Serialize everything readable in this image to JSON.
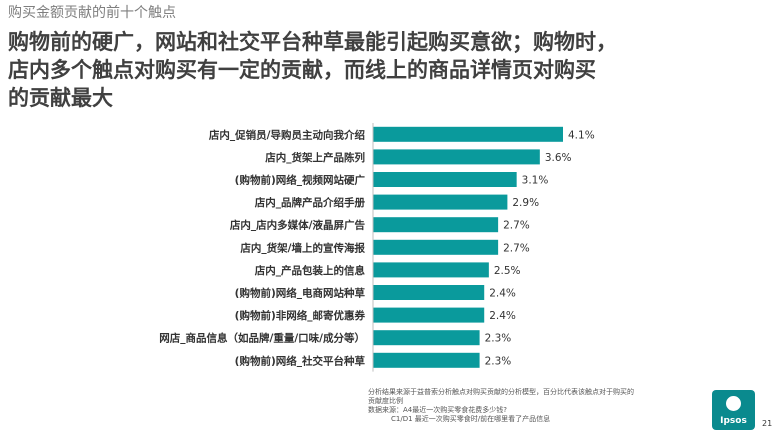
{
  "topic": "购买金额贡献的前十个触点",
  "headline_lines": [
    "购物前的硬广，网站和社交平台种草最能引起购买意欲；购物时，",
    "店内多个触点对购买有一定的贡献，而线上的商品详情页对购买",
    "的贡献最大"
  ],
  "chart_data": {
    "type": "bar",
    "orientation": "horizontal",
    "categories": [
      "店内_促销员/导购员主动向我介绍",
      "店内_货架上产品陈列",
      "(购物前)网络_视频网站硬广",
      "店内_品牌产品介绍手册",
      "店内_店内多媒体/液晶屏广告",
      "店内_货架/墙上的宣传海报",
      "店内_产品包装上的信息",
      "(购物前)网络_电商网站种草",
      "(购物前)非网络_邮寄优惠券",
      "网店_商品信息（如品牌/重量/口味/成分等）",
      "(购物前)网络_社交平台种草"
    ],
    "values": [
      4.1,
      3.6,
      3.1,
      2.9,
      2.7,
      2.7,
      2.5,
      2.4,
      2.4,
      2.3,
      2.3
    ],
    "value_labels": [
      "4.1%",
      "3.6%",
      "3.1%",
      "2.9%",
      "2.7%",
      "2.7%",
      "2.5%",
      "2.4%",
      "2.4%",
      "2.3%",
      "2.3%"
    ],
    "xlim": [
      0,
      4.1
    ],
    "bar_color": "#0a9a9c",
    "grid": false,
    "legend": "none"
  },
  "footer_lines": [
    "分析结果来源于益普索分析触点对购买贡献的分析模型，百分比代表该触点对于购买的",
    "贡献度比例",
    "数据来源：A4最近一次购买零食花费多少钱?",
    "C1/D1 最近一次购买零食时/前在哪里看了产品信息"
  ],
  "logo_text": "Ipsos",
  "page_number": "21",
  "colors": {
    "logo": "#0a8a8e",
    "headline": "#404040",
    "topic": "#7f7f7f"
  }
}
